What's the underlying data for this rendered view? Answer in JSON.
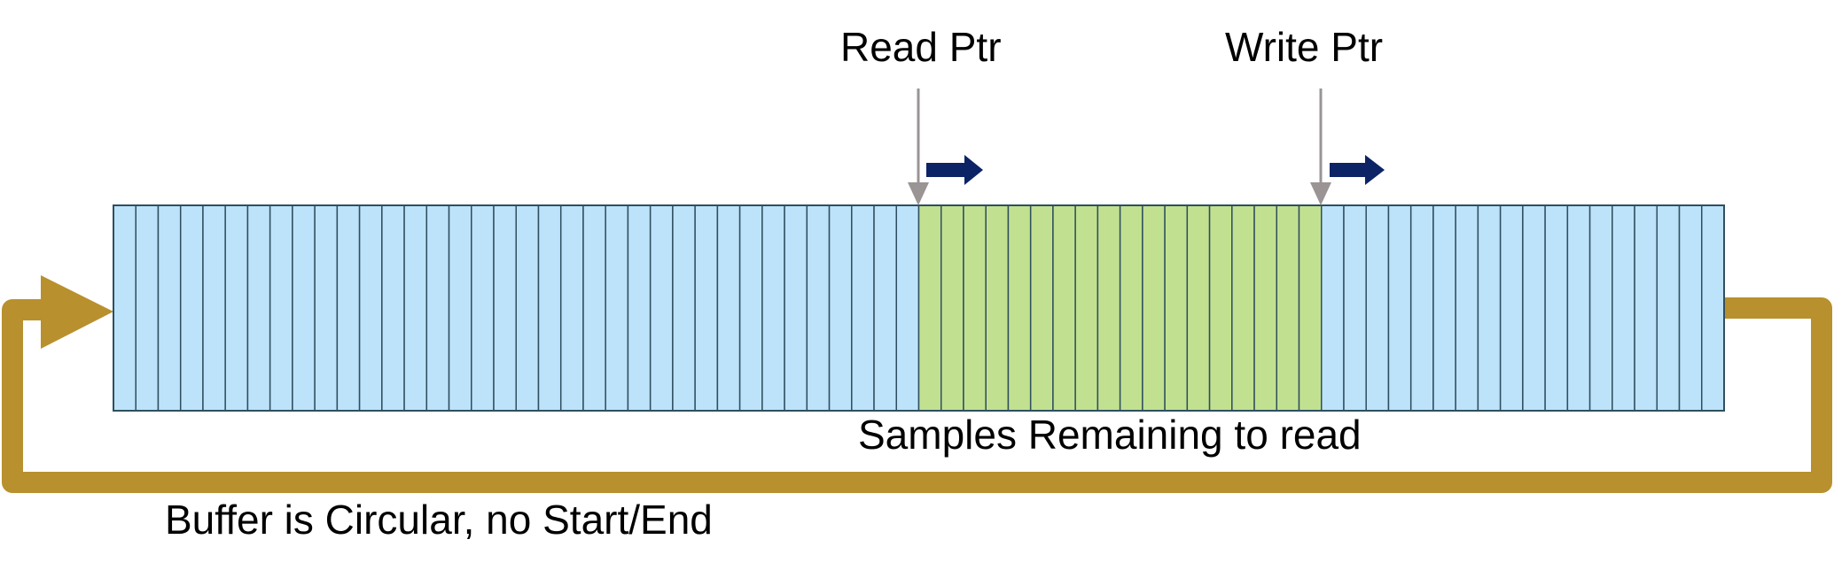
{
  "labels": {
    "read_ptr": "Read Ptr",
    "write_ptr": "Write Ptr",
    "samples_remaining": "Samples Remaining to read",
    "circular_note": "Buffer is Circular, no Start/End"
  },
  "buffer": {
    "total_cells": 72,
    "read_index": 36,
    "write_index": 54
  },
  "colors": {
    "empty_cell": "#bde3fb",
    "filled_cell": "#c2e190",
    "cell_border": "#2f4f5f",
    "pointer_line": "#9a9494",
    "direction_arrow": "#0c2365",
    "loop": "#b8902e"
  }
}
